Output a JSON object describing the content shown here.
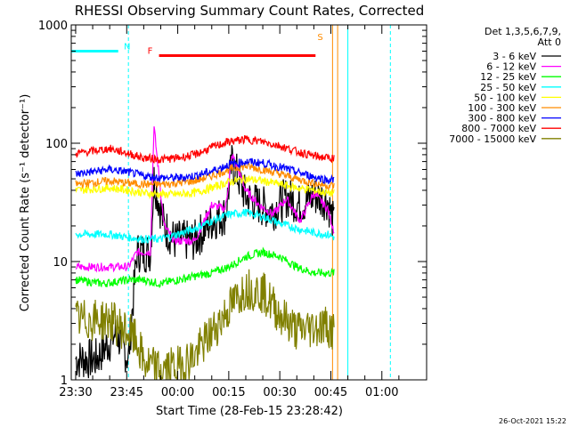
{
  "chart_data": {
    "type": "line",
    "title": "RHESSI Observing Summary Count Rates, Corrected",
    "xlabel": "Start Time (28-Feb-15 23:28:42)",
    "ylabel": "Corrected Count Rate (s⁻¹ detector⁻¹)",
    "y_scale": "log",
    "ylim": [
      1,
      1000
    ],
    "xlim_minutes_after_2330": [
      -1.3,
      77
    ],
    "x_ticks": [
      {
        "t": 0,
        "label": "23:30"
      },
      {
        "t": 15,
        "label": "23:45"
      },
      {
        "t": 30,
        "label": "00:00"
      },
      {
        "t": 45,
        "label": "00:15"
      },
      {
        "t": 60,
        "label": "00:30"
      },
      {
        "t": 75,
        "label": "00:45"
      },
      {
        "t": 90,
        "label": "01:00"
      }
    ],
    "y_ticks": [
      {
        "v": 1,
        "label": "1"
      },
      {
        "v": 10,
        "label": "10"
      },
      {
        "v": 100,
        "label": "100"
      },
      {
        "v": 1000,
        "label": "1000"
      }
    ],
    "legend_header": [
      "Det 1,3,5,6,7,9,",
      "Att 0"
    ],
    "legend_position": "right",
    "series": [
      {
        "name": "3 - 6 keV",
        "color": "#000000",
        "points": [
          [
            0,
            1.5
          ],
          [
            6,
            1.5
          ],
          [
            12,
            2.5
          ],
          [
            15.5,
            1.5
          ],
          [
            18,
            12
          ],
          [
            22,
            12
          ],
          [
            23,
            50
          ],
          [
            26,
            20
          ],
          [
            29,
            15
          ],
          [
            35,
            15
          ],
          [
            40,
            22
          ],
          [
            44,
            25
          ],
          [
            46,
            70
          ],
          [
            50,
            35
          ],
          [
            54,
            30
          ],
          [
            58,
            27
          ],
          [
            62,
            35
          ],
          [
            66,
            30
          ],
          [
            70,
            36
          ],
          [
            74,
            33
          ],
          [
            76,
            20
          ]
        ]
      },
      {
        "name": "6 - 12 keV",
        "color": "#ff00ff",
        "points": [
          [
            0,
            9
          ],
          [
            10,
            9
          ],
          [
            15.5,
            9
          ],
          [
            18,
            12
          ],
          [
            22,
            12
          ],
          [
            23,
            140
          ],
          [
            26,
            20
          ],
          [
            29,
            15
          ],
          [
            35,
            15
          ],
          [
            40,
            30
          ],
          [
            44,
            28
          ],
          [
            46,
            80
          ],
          [
            50,
            40
          ],
          [
            54,
            30
          ],
          [
            58,
            25
          ],
          [
            62,
            34
          ],
          [
            66,
            22
          ],
          [
            70,
            38
          ],
          [
            74,
            28
          ],
          [
            76,
            18
          ]
        ]
      },
      {
        "name": "12 - 25 keV",
        "color": "#00ff00",
        "points": [
          [
            0,
            7
          ],
          [
            8,
            6.5
          ],
          [
            15.5,
            7
          ],
          [
            20,
            7
          ],
          [
            25,
            6.5
          ],
          [
            30,
            7
          ],
          [
            35,
            7.5
          ],
          [
            40,
            8
          ],
          [
            45,
            9
          ],
          [
            50,
            11
          ],
          [
            55,
            12
          ],
          [
            60,
            11
          ],
          [
            65,
            9
          ],
          [
            70,
            8
          ],
          [
            74,
            8
          ],
          [
            76,
            8
          ]
        ]
      },
      {
        "name": "25 - 50 keV",
        "color": "#00ffff",
        "points": [
          [
            0,
            17
          ],
          [
            10,
            17
          ],
          [
            15.5,
            16
          ],
          [
            20,
            15.5
          ],
          [
            25,
            15.5
          ],
          [
            30,
            17
          ],
          [
            35,
            19
          ],
          [
            40,
            22
          ],
          [
            45,
            25
          ],
          [
            50,
            26
          ],
          [
            55,
            24
          ],
          [
            60,
            21
          ],
          [
            65,
            19
          ],
          [
            70,
            17.5
          ],
          [
            74,
            17
          ],
          [
            76,
            16
          ]
        ]
      },
      {
        "name": "50 - 100 keV",
        "color": "#ffff00",
        "points": [
          [
            0,
            40
          ],
          [
            10,
            42
          ],
          [
            15.5,
            40
          ],
          [
            20,
            38
          ],
          [
            25,
            37
          ],
          [
            30,
            37
          ],
          [
            35,
            38
          ],
          [
            40,
            42
          ],
          [
            45,
            47
          ],
          [
            50,
            50
          ],
          [
            55,
            48
          ],
          [
            60,
            45
          ],
          [
            65,
            42
          ],
          [
            70,
            40
          ],
          [
            74,
            38
          ],
          [
            76,
            38
          ]
        ]
      },
      {
        "name": "100 - 300 keV",
        "color": "#ff8c00",
        "points": [
          [
            0,
            45
          ],
          [
            10,
            48
          ],
          [
            15.5,
            46
          ],
          [
            20,
            45
          ],
          [
            25,
            45
          ],
          [
            30,
            46
          ],
          [
            35,
            48
          ],
          [
            40,
            53
          ],
          [
            45,
            60
          ],
          [
            50,
            64
          ],
          [
            55,
            60
          ],
          [
            60,
            55
          ],
          [
            65,
            50
          ],
          [
            70,
            46
          ],
          [
            74,
            44
          ],
          [
            76,
            44
          ]
        ]
      },
      {
        "name": "300 - 800 keV",
        "color": "#0000ff",
        "points": [
          [
            0,
            55
          ],
          [
            10,
            60
          ],
          [
            15.5,
            57
          ],
          [
            20,
            53
          ],
          [
            25,
            51
          ],
          [
            30,
            51
          ],
          [
            35,
            53
          ],
          [
            40,
            58
          ],
          [
            45,
            66
          ],
          [
            50,
            70
          ],
          [
            55,
            68
          ],
          [
            60,
            63
          ],
          [
            65,
            57
          ],
          [
            70,
            52
          ],
          [
            74,
            49
          ],
          [
            76,
            49
          ]
        ]
      },
      {
        "name": "800 - 7000 keV",
        "color": "#ff0000",
        "points": [
          [
            0,
            82
          ],
          [
            10,
            90
          ],
          [
            15.5,
            82
          ],
          [
            20,
            75
          ],
          [
            25,
            73
          ],
          [
            30,
            75
          ],
          [
            35,
            80
          ],
          [
            40,
            92
          ],
          [
            45,
            103
          ],
          [
            50,
            108
          ],
          [
            55,
            103
          ],
          [
            60,
            95
          ],
          [
            65,
            85
          ],
          [
            70,
            78
          ],
          [
            74,
            75
          ],
          [
            76,
            75
          ]
        ]
      },
      {
        "name": "7000 - 15000 keV",
        "color": "#808000",
        "points": [
          [
            0,
            3.2
          ],
          [
            10,
            3.2
          ],
          [
            15.5,
            2.5
          ],
          [
            18,
            2.1
          ],
          [
            20,
            1.4
          ],
          [
            25,
            1.2
          ],
          [
            30,
            1.3
          ],
          [
            35,
            1.6
          ],
          [
            40,
            2.5
          ],
          [
            45,
            4
          ],
          [
            50,
            6
          ],
          [
            55,
            5.5
          ],
          [
            60,
            3.6
          ],
          [
            65,
            2.6
          ],
          [
            70,
            2.8
          ],
          [
            74,
            2.9
          ],
          [
            76,
            2.5
          ]
        ]
      }
    ],
    "annotations": [
      {
        "label": "N",
        "color": "#00ffff",
        "x_start": -1.3,
        "x_end": 12.5,
        "y": 600
      },
      {
        "label": "F",
        "color": "#ff0000",
        "x_start": 24.5,
        "x_end": 70.5,
        "y": 550
      },
      {
        "label": "S",
        "color": "#ff8c00",
        "x": 74.5,
        "y": 800
      }
    ],
    "vertical_markers": [
      {
        "color": "#00ffff",
        "x": -1.3
      },
      {
        "color": "#00ffff",
        "x": 15.5
      },
      {
        "color": "#00ffff",
        "x": 80
      },
      {
        "color": "#00ffff",
        "x": 92.5
      },
      {
        "color": "#ff8c00",
        "x": 75.5
      },
      {
        "color": "#ff8c00",
        "x": 77
      }
    ],
    "grid": false
  },
  "footer_date": "26-Oct-2021 15:22"
}
